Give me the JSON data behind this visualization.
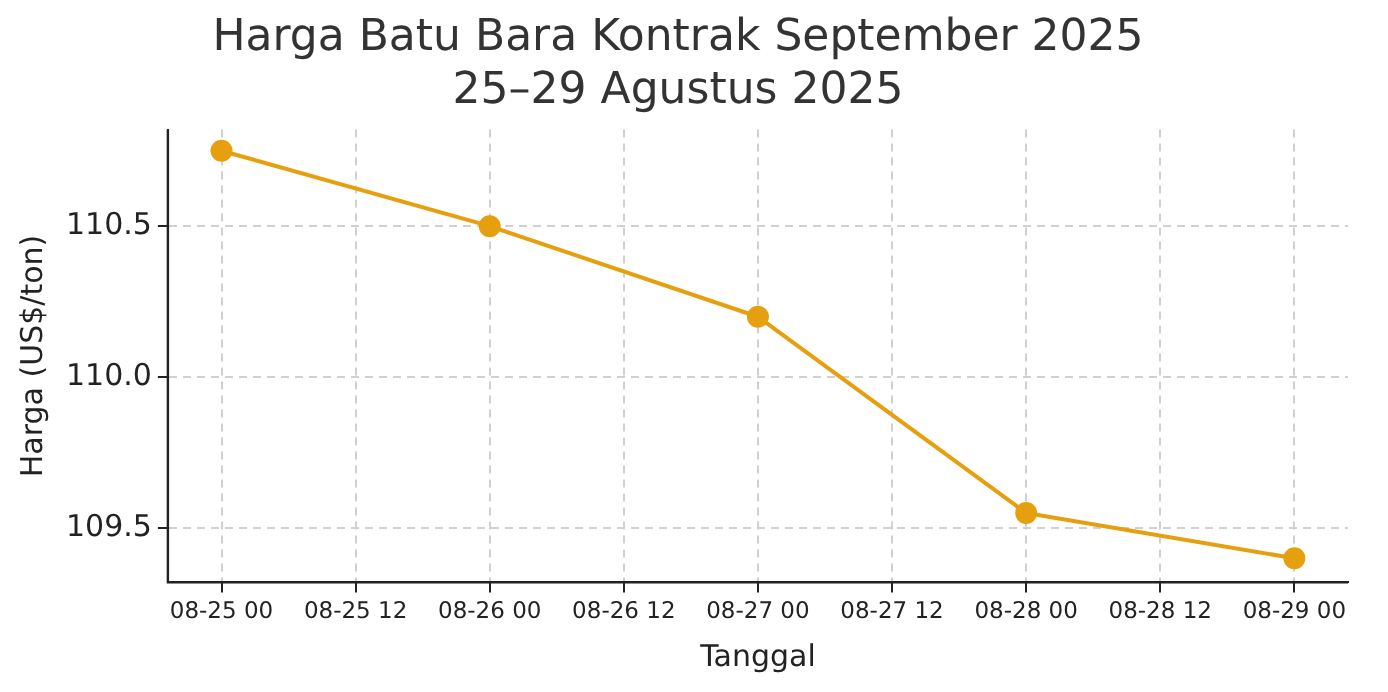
{
  "chart_data": {
    "type": "line",
    "title": "Harga Batu Bara Kontrak September 2025\n25–29 Agustus 2025",
    "xlabel": "Tanggal",
    "ylabel": "Harga (US$/ton)",
    "x": [
      "2025-08-25T00:00",
      "2025-08-26T00:00",
      "2025-08-27T00:00",
      "2025-08-28T00:00",
      "2025-08-29T00:00"
    ],
    "series": [
      {
        "color": "#e6a00f",
        "values": [
          110.75,
          110.5,
          110.2,
          109.55,
          109.4
        ]
      }
    ],
    "xlim": [
      "2025-08-24T19:12",
      "2025-08-29T04:48"
    ],
    "xticks": [
      {
        "value": "2025-08-25T00:00",
        "label": "08-25 00"
      },
      {
        "value": "2025-08-25T12:00",
        "label": "08-25 12"
      },
      {
        "value": "2025-08-26T00:00",
        "label": "08-26 00"
      },
      {
        "value": "2025-08-26T12:00",
        "label": "08-26 12"
      },
      {
        "value": "2025-08-27T00:00",
        "label": "08-27 00"
      },
      {
        "value": "2025-08-27T12:00",
        "label": "08-27 12"
      },
      {
        "value": "2025-08-28T00:00",
        "label": "08-28 00"
      },
      {
        "value": "2025-08-28T12:00",
        "label": "08-28 12"
      },
      {
        "value": "2025-08-29T00:00",
        "label": "08-29 00"
      }
    ],
    "ylim": [
      109.32,
      110.82
    ],
    "yticks": [
      {
        "value": 109.5,
        "label": "109.5"
      },
      {
        "value": 110,
        "label": "110.0"
      },
      {
        "value": 110.5,
        "label": "110.5"
      }
    ],
    "grid": true,
    "legend": false,
    "marker": "circle",
    "line_style": "solid"
  }
}
